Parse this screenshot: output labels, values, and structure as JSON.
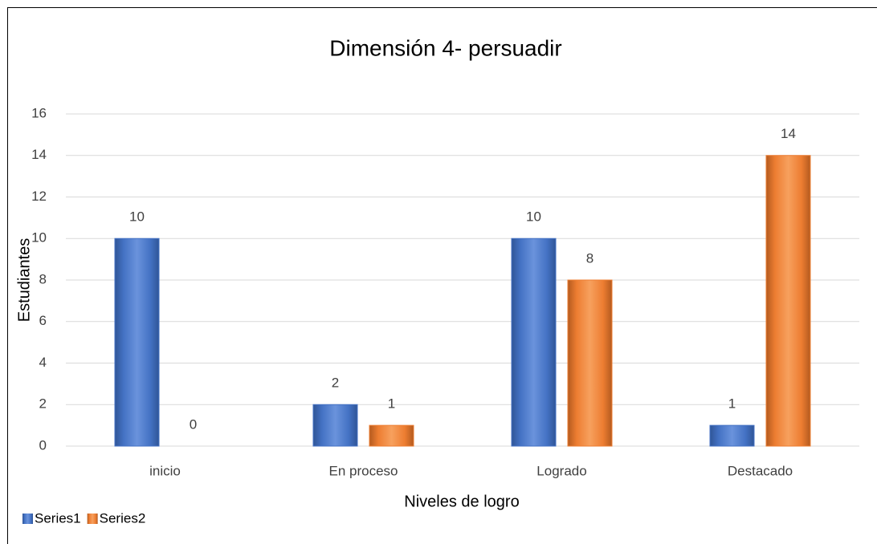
{
  "chart_data": {
    "type": "bar",
    "title": "Dimensión 4- persuadir",
    "categories": [
      "inicio",
      "En proceso",
      "Logrado",
      "Destacado"
    ],
    "series": [
      {
        "name": "Series1",
        "color": "#4472c4",
        "values": [
          10,
          2,
          10,
          1
        ]
      },
      {
        "name": "Series2",
        "color": "#ed7d31",
        "values": [
          0,
          1,
          8,
          14
        ]
      }
    ],
    "ylim": [
      0,
      16
    ],
    "yticks": [
      0,
      2,
      4,
      6,
      8,
      10,
      12,
      14,
      16
    ],
    "grid": true,
    "x_label": "Niveles de logro",
    "y_label": "Estudiantes",
    "legend": "bottom-left"
  }
}
